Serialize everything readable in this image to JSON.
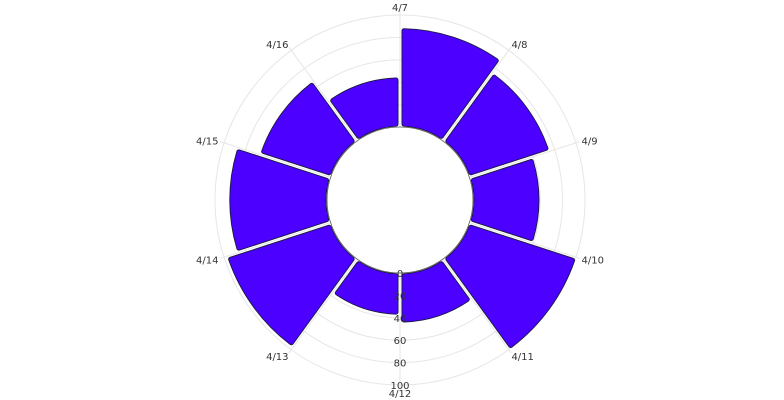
{
  "chart_data": {
    "type": "bar",
    "subtype": "polar",
    "categories": [
      "4/7",
      "4/8",
      "4/9",
      "4/10",
      "4/11",
      "4/12",
      "4/13",
      "4/14",
      "4/15",
      "4/16"
    ],
    "values": [
      86,
      73,
      57,
      98,
      42,
      35,
      95,
      85,
      64,
      42
    ],
    "radial_ticks": [
      "0",
      "20",
      "40",
      "60",
      "80",
      "100"
    ],
    "rlim": [
      0,
      100
    ],
    "grid": true,
    "bar_color": "#4c00ff",
    "bar_stroke": "#1a1a40"
  }
}
